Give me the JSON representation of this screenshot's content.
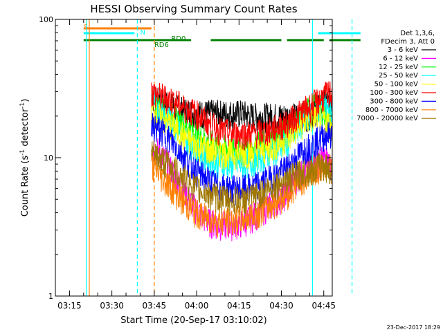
{
  "chart_data": {
    "type": "line",
    "title": "HESSI Observing Summary Count Rates",
    "xlabel": "Start Time (20-Sep-17 03:10:02)",
    "ylabel_parts": [
      "Count Rate (s",
      "-1",
      " detector",
      "-1",
      ")"
    ],
    "yscale": "log",
    "ylim": [
      1,
      100
    ],
    "y_ticks": [
      {
        "v": 1,
        "label": "1"
      },
      {
        "v": 10,
        "label": "10"
      },
      {
        "v": 100,
        "label": "100"
      }
    ],
    "xlim": [
      "03:10",
      "04:48"
    ],
    "x_ticks": [
      "03:15",
      "03:30",
      "03:45",
      "04:00",
      "04:15",
      "04:30",
      "04:45"
    ],
    "timestamp": "23-Dec-2017 18:29",
    "legend_header": [
      "Det 1,3,6,",
      "FDecim 3, Att 0"
    ],
    "legend_position": "right",
    "series": [
      {
        "name": "3 - 6 keV",
        "color": "#000000",
        "profile": [
          [
            34,
            28
          ],
          [
            37,
            26
          ],
          [
            40,
            24
          ],
          [
            43,
            23
          ],
          [
            46,
            22
          ],
          [
            50,
            21
          ],
          [
            54,
            21
          ],
          [
            58,
            21
          ],
          [
            62,
            21
          ],
          [
            66,
            21
          ],
          [
            70,
            20
          ],
          [
            74,
            20
          ],
          [
            78,
            20
          ],
          [
            82,
            20
          ],
          [
            85,
            20
          ],
          [
            88,
            20
          ],
          [
            92,
            22
          ],
          [
            95,
            25
          ],
          [
            98,
            26
          ]
        ]
      },
      {
        "name": "6 - 12 keV",
        "color": "#ff00ff",
        "profile": [
          [
            34,
            12
          ],
          [
            37,
            11
          ],
          [
            40,
            9
          ],
          [
            43,
            7
          ],
          [
            46,
            5.5
          ],
          [
            50,
            4.2
          ],
          [
            54,
            3.5
          ],
          [
            58,
            3.3
          ],
          [
            62,
            3.3
          ],
          [
            66,
            3.4
          ],
          [
            70,
            3.8
          ],
          [
            74,
            4.3
          ],
          [
            78,
            4.8
          ],
          [
            82,
            5.6
          ],
          [
            85,
            7
          ],
          [
            88,
            8
          ],
          [
            92,
            9
          ],
          [
            95,
            10
          ],
          [
            98,
            9
          ]
        ]
      },
      {
        "name": "12 - 25 keV",
        "color": "#00ff00",
        "profile": [
          [
            34,
            25
          ],
          [
            37,
            23
          ],
          [
            40,
            21
          ],
          [
            43,
            19
          ],
          [
            46,
            17
          ],
          [
            50,
            15
          ],
          [
            54,
            13
          ],
          [
            58,
            12
          ],
          [
            62,
            11.5
          ],
          [
            66,
            11.5
          ],
          [
            70,
            12
          ],
          [
            74,
            13
          ],
          [
            78,
            14
          ],
          [
            82,
            16
          ],
          [
            85,
            18
          ],
          [
            88,
            21
          ],
          [
            92,
            24
          ],
          [
            95,
            22
          ],
          [
            98,
            18
          ]
        ]
      },
      {
        "name": "25 - 50 keV",
        "color": "#00ffff",
        "profile": [
          [
            34,
            27
          ],
          [
            37,
            24
          ],
          [
            40,
            20
          ],
          [
            43,
            17
          ],
          [
            46,
            14
          ],
          [
            50,
            11.5
          ],
          [
            54,
            10
          ],
          [
            58,
            9.2
          ],
          [
            62,
            9
          ],
          [
            66,
            9
          ],
          [
            70,
            9.5
          ],
          [
            74,
            10.5
          ],
          [
            78,
            11.5
          ],
          [
            82,
            13
          ],
          [
            85,
            16
          ],
          [
            88,
            19
          ],
          [
            92,
            22
          ],
          [
            95,
            24
          ],
          [
            98,
            20
          ]
        ]
      },
      {
        "name": "50 - 100 keV",
        "color": "#ffff00",
        "profile": [
          [
            34,
            22
          ],
          [
            37,
            20
          ],
          [
            40,
            18
          ],
          [
            43,
            16
          ],
          [
            46,
            14
          ],
          [
            50,
            12.5
          ],
          [
            54,
            11.5
          ],
          [
            58,
            11
          ],
          [
            62,
            10.8
          ],
          [
            66,
            10.8
          ],
          [
            70,
            11
          ],
          [
            74,
            11.5
          ],
          [
            78,
            12.5
          ],
          [
            82,
            14
          ],
          [
            85,
            16
          ],
          [
            88,
            18
          ],
          [
            92,
            20
          ],
          [
            95,
            19
          ],
          [
            98,
            17
          ]
        ]
      },
      {
        "name": "100 - 300 keV",
        "color": "#ff0000",
        "profile": [
          [
            34,
            30
          ],
          [
            37,
            28
          ],
          [
            40,
            27
          ],
          [
            43,
            25
          ],
          [
            46,
            23
          ],
          [
            50,
            21
          ],
          [
            54,
            18
          ],
          [
            58,
            16
          ],
          [
            62,
            15
          ],
          [
            66,
            15
          ],
          [
            70,
            15
          ],
          [
            74,
            15.5
          ],
          [
            78,
            16.5
          ],
          [
            82,
            18
          ],
          [
            85,
            20
          ],
          [
            88,
            22
          ],
          [
            92,
            25
          ],
          [
            95,
            28
          ],
          [
            98,
            30
          ]
        ]
      },
      {
        "name": "300 - 800 keV",
        "color": "#0000ff",
        "profile": [
          [
            34,
            17
          ],
          [
            37,
            16
          ],
          [
            40,
            14
          ],
          [
            43,
            12
          ],
          [
            46,
            10
          ],
          [
            50,
            8
          ],
          [
            54,
            7
          ],
          [
            58,
            6.2
          ],
          [
            62,
            6
          ],
          [
            66,
            6
          ],
          [
            70,
            6.2
          ],
          [
            74,
            6.8
          ],
          [
            78,
            7.5
          ],
          [
            82,
            8.5
          ],
          [
            85,
            10
          ],
          [
            88,
            11.5
          ],
          [
            92,
            13
          ],
          [
            95,
            14.5
          ],
          [
            98,
            15
          ]
        ]
      },
      {
        "name": "800 - 7000 keV",
        "color": "#ff8000",
        "profile": [
          [
            34,
            9
          ],
          [
            37,
            7.5
          ],
          [
            40,
            6.5
          ],
          [
            43,
            5.5
          ],
          [
            46,
            4.7
          ],
          [
            50,
            4
          ],
          [
            54,
            3.7
          ],
          [
            58,
            3.5
          ],
          [
            62,
            3.5
          ],
          [
            66,
            3.6
          ],
          [
            70,
            3.9
          ],
          [
            74,
            4.3
          ],
          [
            78,
            4.8
          ],
          [
            82,
            5.5
          ],
          [
            85,
            6.3
          ],
          [
            88,
            7.2
          ],
          [
            92,
            8
          ],
          [
            95,
            9
          ],
          [
            98,
            8.5
          ]
        ]
      },
      {
        "name": "7000 - 20000 keV",
        "color": "#a07800",
        "profile": [
          [
            34,
            11
          ],
          [
            37,
            10
          ],
          [
            40,
            9
          ],
          [
            43,
            8
          ],
          [
            46,
            7
          ],
          [
            50,
            6
          ],
          [
            54,
            5.5
          ],
          [
            58,
            5.2
          ],
          [
            62,
            5
          ],
          [
            66,
            5
          ],
          [
            70,
            5.2
          ],
          [
            74,
            5.8
          ],
          [
            78,
            6.5
          ],
          [
            82,
            7
          ],
          [
            85,
            7.5
          ],
          [
            88,
            8
          ],
          [
            92,
            8.5
          ],
          [
            95,
            9
          ],
          [
            98,
            8
          ]
        ]
      }
    ],
    "data_start_min": 34,
    "data_end_min": 98,
    "status_bars": [
      {
        "label": "S",
        "color": "#ff8000",
        "row": "top",
        "segments": [
          [
            10,
            34
          ]
        ],
        "label_at": 10
      },
      {
        "label": "N",
        "color": "#00ffff",
        "row": "second",
        "segments": [
          [
            10,
            28
          ],
          [
            93,
            108
          ]
        ],
        "label_at": 30
      },
      {
        "label": "RD6",
        "color": "#008000",
        "row": "third",
        "segments": [
          [
            10,
            48
          ],
          [
            55,
            80
          ],
          [
            82,
            95
          ],
          [
            97,
            108
          ]
        ],
        "label_at": 35
      },
      {
        "label": "RD0",
        "color": "#008000",
        "row": "fourth",
        "segments": [],
        "label_at": 41
      }
    ],
    "event_lines": [
      {
        "minute": 11,
        "color": "#00ffff",
        "style": "solid"
      },
      {
        "minute": 12,
        "color": "#ff8000",
        "style": "solid"
      },
      {
        "minute": 29,
        "color": "#00ffff",
        "style": "dashed"
      },
      {
        "minute": 35,
        "color": "#ff8000",
        "style": "dashed"
      },
      {
        "minute": 91,
        "color": "#00ffff",
        "style": "solid"
      },
      {
        "minute": 105,
        "color": "#00ffff",
        "style": "dashed"
      }
    ]
  }
}
